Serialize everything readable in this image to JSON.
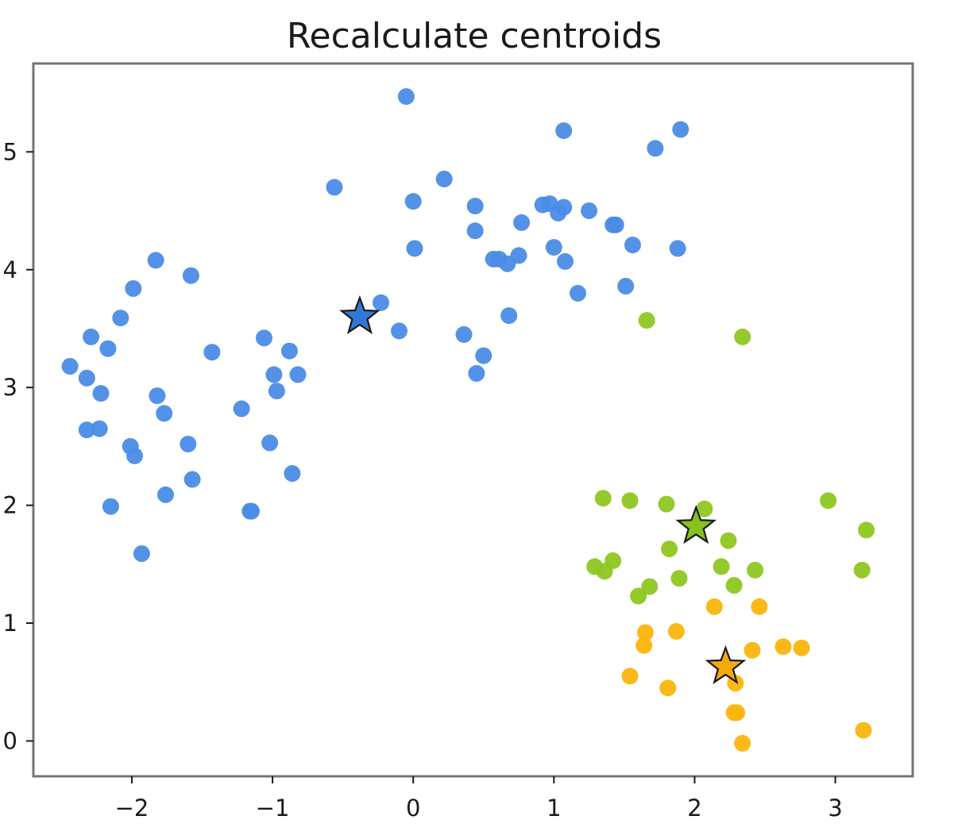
{
  "chart_data": {
    "type": "scatter",
    "title": "Recalculate centroids",
    "xlabel": "",
    "ylabel": "",
    "xlim": [
      -2.7,
      3.55
    ],
    "ylim": [
      -0.3,
      5.75
    ],
    "grid": false,
    "x_ticks": [
      -2,
      -1,
      0,
      1,
      2,
      3
    ],
    "x_tick_labels": [
      "−2",
      "−1",
      "0",
      "1",
      "2",
      "3"
    ],
    "y_ticks": [
      0,
      1,
      2,
      3,
      4,
      5
    ],
    "y_tick_labels": [
      "0",
      "1",
      "2",
      "3",
      "4",
      "5"
    ],
    "series": [
      {
        "color": "#4a8ce6",
        "points": [
          [
            -0.05,
            5.47
          ],
          [
            1.07,
            5.18
          ],
          [
            1.9,
            5.19
          ],
          [
            1.72,
            5.03
          ],
          [
            -0.56,
            4.7
          ],
          [
            0.22,
            4.77
          ],
          [
            0.0,
            4.58
          ],
          [
            0.44,
            4.54
          ],
          [
            0.92,
            4.55
          ],
          [
            0.97,
            4.56
          ],
          [
            1.03,
            4.48
          ],
          [
            1.07,
            4.53
          ],
          [
            1.25,
            4.5
          ],
          [
            0.77,
            4.4
          ],
          [
            1.42,
            4.38
          ],
          [
            1.44,
            4.38
          ],
          [
            0.44,
            4.33
          ],
          [
            0.01,
            4.18
          ],
          [
            1.0,
            4.19
          ],
          [
            1.56,
            4.21
          ],
          [
            1.88,
            4.18
          ],
          [
            0.57,
            4.09
          ],
          [
            0.61,
            4.09
          ],
          [
            0.67,
            4.05
          ],
          [
            0.75,
            4.12
          ],
          [
            1.08,
            4.07
          ],
          [
            1.17,
            3.8
          ],
          [
            1.51,
            3.86
          ],
          [
            -0.23,
            3.72
          ],
          [
            0.68,
            3.61
          ],
          [
            -0.1,
            3.48
          ],
          [
            0.36,
            3.45
          ],
          [
            0.5,
            3.27
          ],
          [
            0.45,
            3.12
          ],
          [
            -1.83,
            4.08
          ],
          [
            -1.58,
            3.95
          ],
          [
            -1.99,
            3.84
          ],
          [
            -2.08,
            3.59
          ],
          [
            -2.29,
            3.43
          ],
          [
            -2.17,
            3.33
          ],
          [
            -1.43,
            3.3
          ],
          [
            -1.06,
            3.42
          ],
          [
            -0.88,
            3.31
          ],
          [
            -0.99,
            3.11
          ],
          [
            -0.82,
            3.11
          ],
          [
            -0.97,
            2.97
          ],
          [
            -2.44,
            3.18
          ],
          [
            -2.32,
            3.08
          ],
          [
            -2.22,
            2.95
          ],
          [
            -1.82,
            2.93
          ],
          [
            -1.77,
            2.78
          ],
          [
            -1.22,
            2.82
          ],
          [
            -2.32,
            2.64
          ],
          [
            -2.23,
            2.65
          ],
          [
            -1.6,
            2.52
          ],
          [
            -1.02,
            2.53
          ],
          [
            -2.01,
            2.5
          ],
          [
            -1.98,
            2.42
          ],
          [
            -1.57,
            2.22
          ],
          [
            -0.86,
            2.27
          ],
          [
            -1.76,
            2.09
          ],
          [
            -2.15,
            1.99
          ],
          [
            -1.16,
            1.95
          ],
          [
            -1.15,
            1.95
          ],
          [
            -1.93,
            1.59
          ]
        ]
      },
      {
        "color": "#8ec720",
        "points": [
          [
            1.66,
            3.57
          ],
          [
            2.34,
            3.43
          ],
          [
            1.35,
            2.06
          ],
          [
            1.54,
            2.04
          ],
          [
            1.8,
            2.01
          ],
          [
            2.07,
            1.97
          ],
          [
            2.95,
            2.04
          ],
          [
            3.22,
            1.79
          ],
          [
            2.24,
            1.7
          ],
          [
            1.82,
            1.63
          ],
          [
            1.29,
            1.48
          ],
          [
            1.36,
            1.44
          ],
          [
            1.42,
            1.53
          ],
          [
            2.19,
            1.48
          ],
          [
            2.43,
            1.45
          ],
          [
            3.19,
            1.45
          ],
          [
            1.89,
            1.38
          ],
          [
            1.68,
            1.31
          ],
          [
            1.6,
            1.23
          ],
          [
            2.28,
            1.32
          ]
        ]
      },
      {
        "color": "#fbb50d",
        "points": [
          [
            2.14,
            1.14
          ],
          [
            2.46,
            1.14
          ],
          [
            1.65,
            0.92
          ],
          [
            1.87,
            0.93
          ],
          [
            1.64,
            0.81
          ],
          [
            2.41,
            0.77
          ],
          [
            2.63,
            0.8
          ],
          [
            2.76,
            0.79
          ],
          [
            1.54,
            0.55
          ],
          [
            1.81,
            0.45
          ],
          [
            2.29,
            0.49
          ],
          [
            2.28,
            0.24
          ],
          [
            2.3,
            0.24
          ],
          [
            3.2,
            0.09
          ],
          [
            2.34,
            -0.02
          ]
        ]
      }
    ],
    "centroids": [
      {
        "x": -0.38,
        "y": 3.6,
        "color": "#2f79d6"
      },
      {
        "x": 2.01,
        "y": 1.82,
        "color": "#86c11c"
      },
      {
        "x": 2.22,
        "y": 0.63,
        "color": "#f4ab0a"
      }
    ]
  }
}
